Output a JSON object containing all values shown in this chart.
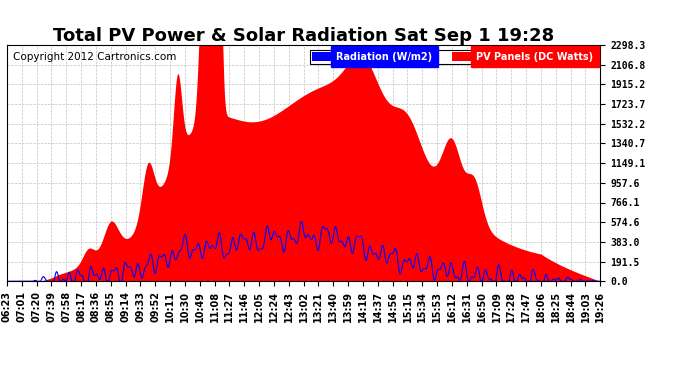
{
  "title": "Total PV Power & Solar Radiation Sat Sep 1 19:28",
  "copyright": "Copyright 2012 Cartronics.com",
  "legend_radiation": "Radiation (W/m2)",
  "legend_pv": "PV Panels (DC Watts)",
  "yticks": [
    0.0,
    191.5,
    383.0,
    574.6,
    766.1,
    957.6,
    1149.1,
    1340.7,
    1532.2,
    1723.7,
    1915.2,
    2106.8,
    2298.3
  ],
  "ymax": 2298.3,
  "ymin": 0.0,
  "xtick_labels": [
    "06:23",
    "07:01",
    "07:20",
    "07:39",
    "07:58",
    "08:17",
    "08:36",
    "08:55",
    "09:14",
    "09:33",
    "09:52",
    "10:11",
    "10:30",
    "10:49",
    "11:08",
    "11:27",
    "11:46",
    "12:05",
    "12:24",
    "12:43",
    "13:02",
    "13:21",
    "13:40",
    "13:59",
    "14:18",
    "14:37",
    "14:56",
    "15:15",
    "15:34",
    "15:53",
    "16:12",
    "16:31",
    "16:50",
    "17:09",
    "17:28",
    "17:47",
    "18:06",
    "18:25",
    "18:44",
    "19:03",
    "19:26"
  ],
  "background_color": "#ffffff",
  "plot_bg_color": "#ffffff",
  "grid_color": "#bbbbbb",
  "red_fill_color": "#ff0000",
  "blue_line_color": "#0000ff",
  "title_fontsize": 13,
  "tick_fontsize": 7,
  "copyright_fontsize": 7.5
}
